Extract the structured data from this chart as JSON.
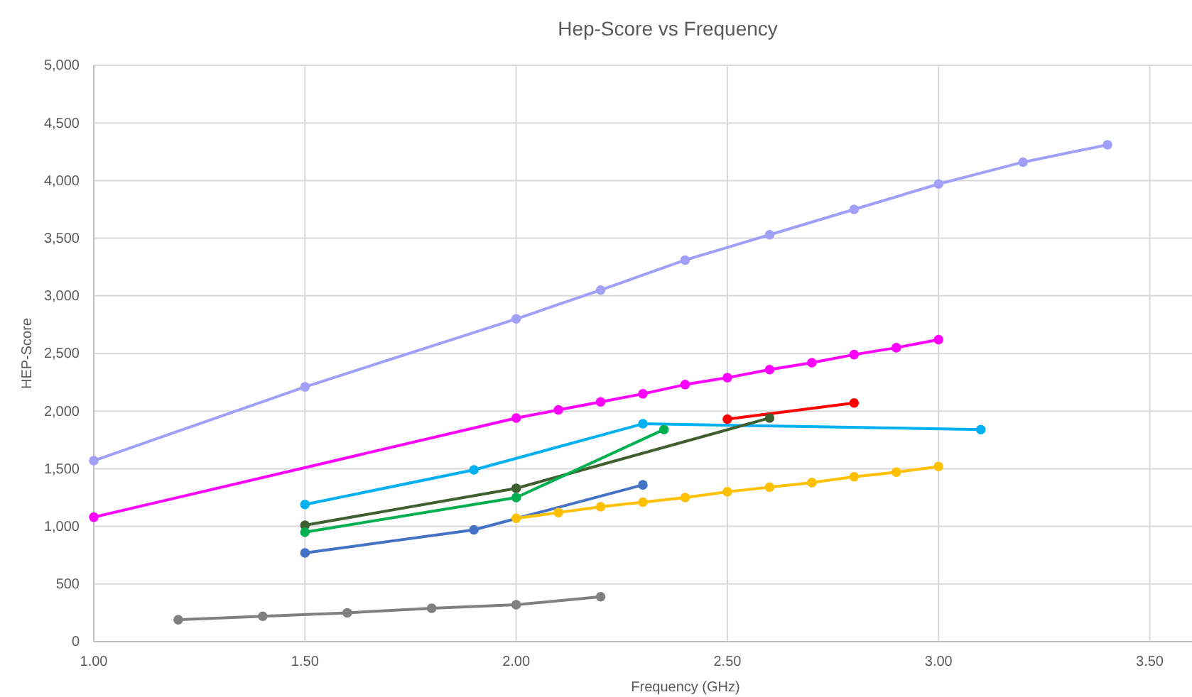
{
  "chart_data": {
    "type": "line",
    "title": "Hep-Score vs  Frequency",
    "xlabel": "Frequency (GHz)",
    "ylabel": "HEP-Score",
    "xlim": [
      1,
      3.6
    ],
    "xticks": [
      {
        "value": 1,
        "label": "1.00"
      },
      {
        "value": 1.5,
        "label": "1.50"
      },
      {
        "value": 2,
        "label": "2.00"
      },
      {
        "value": 2.5,
        "label": "2.50"
      },
      {
        "value": 3,
        "label": "3.00"
      },
      {
        "value": 3.5,
        "label": "3.50"
      }
    ],
    "ylim": [
      0,
      5000
    ],
    "yticks": [
      {
        "value": 0,
        "label": "0"
      },
      {
        "value": 500,
        "label": "500"
      },
      {
        "value": 1000,
        "label": "1,000"
      },
      {
        "value": 1500,
        "label": "1,500"
      },
      {
        "value": 2000,
        "label": "2,000"
      },
      {
        "value": 2500,
        "label": "2,500"
      },
      {
        "value": 3000,
        "label": "3,000"
      },
      {
        "value": 3500,
        "label": "3,500"
      },
      {
        "value": 4000,
        "label": "4,000"
      },
      {
        "value": 4500,
        "label": "4,500"
      },
      {
        "value": 5000,
        "label": "5,000"
      }
    ],
    "grid": true,
    "marker": "circle",
    "line_style": "solid",
    "series": [
      {
        "color": "#a0a0f8",
        "x": [
          1.0,
          1.5,
          2.0,
          2.2,
          2.4,
          2.6,
          2.8,
          3.0,
          3.2,
          3.4
        ],
        "values": [
          1570,
          2210,
          2800,
          3050,
          3310,
          3530,
          3750,
          3970,
          4160,
          4310
        ]
      },
      {
        "color": "#ff00ff",
        "x": [
          1.0,
          2.0,
          2.1,
          2.2,
          2.3,
          2.4,
          2.5,
          2.6,
          2.7,
          2.8,
          2.9,
          3.0
        ],
        "values": [
          1080,
          1940,
          2010,
          2080,
          2150,
          2230,
          2290,
          2360,
          2420,
          2490,
          2550,
          2620
        ]
      },
      {
        "color": "#ff0000",
        "x": [
          2.5,
          2.8
        ],
        "values": [
          1930,
          2070
        ]
      },
      {
        "color": "#00b0f0",
        "x": [
          1.5,
          1.9,
          2.3,
          3.1
        ],
        "values": [
          1190,
          1490,
          1890,
          1840
        ]
      },
      {
        "color": "#3f5f2f",
        "x": [
          1.5,
          2.0,
          2.6
        ],
        "values": [
          1010,
          1330,
          1940
        ]
      },
      {
        "color": "#00b050",
        "x": [
          1.5,
          2.0,
          2.35
        ],
        "values": [
          950,
          1250,
          1840
        ]
      },
      {
        "color": "#4472c4",
        "x": [
          1.5,
          1.9,
          2.3
        ],
        "values": [
          770,
          970,
          1360
        ]
      },
      {
        "color": "#ffc000",
        "x": [
          2.0,
          2.1,
          2.2,
          2.3,
          2.4,
          2.5,
          2.6,
          2.7,
          2.8,
          2.9,
          3.0
        ],
        "values": [
          1070,
          1120,
          1170,
          1210,
          1250,
          1300,
          1340,
          1380,
          1430,
          1470,
          1520
        ]
      },
      {
        "color": "#808080",
        "x": [
          1.2,
          1.4,
          1.6,
          1.8,
          2.0,
          2.2
        ],
        "values": [
          190,
          220,
          250,
          290,
          320,
          390
        ]
      }
    ]
  }
}
